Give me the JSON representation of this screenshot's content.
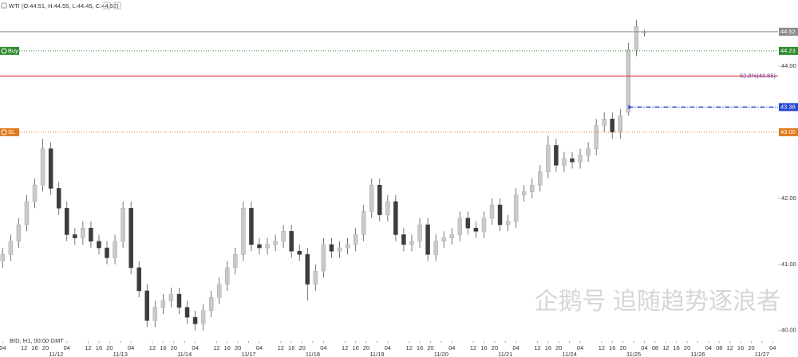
{
  "chart_data": {
    "type": "candlestick",
    "title": "WTI (O:44.51, H:44.55, L:44.45, C:44.52)",
    "footer": "BID, H1, 00:00 GMT",
    "watermark": "企鹅号 追随趋势逐浪者",
    "up_color": "#c9c9c9",
    "down_color": "#3d3d3d",
    "xlim": [
      3,
      294
    ],
    "ylim": [
      39.84,
      45.0
    ],
    "yticks": [
      {
        "value": 40,
        "label": "40.00"
      },
      {
        "value": 41,
        "label": "41.00"
      },
      {
        "value": 42,
        "label": "42.00"
      },
      {
        "value": 43,
        "label": "43.00"
      },
      {
        "value": 44,
        "label": "44.00"
      }
    ],
    "xticks": [
      {
        "value": 4,
        "label": "04"
      },
      {
        "value": 12,
        "label": "12"
      },
      {
        "value": 16,
        "label": "16"
      },
      {
        "value": 20,
        "label": "20"
      },
      {
        "value": 28,
        "label": "04"
      },
      {
        "value": 36,
        "label": "12"
      },
      {
        "value": 40,
        "label": "16"
      },
      {
        "value": 44,
        "label": "20"
      },
      {
        "value": 52,
        "label": "04"
      },
      {
        "value": 60,
        "label": "12"
      },
      {
        "value": 64,
        "label": "16"
      },
      {
        "value": 68,
        "label": "20"
      },
      {
        "value": 76,
        "label": "04"
      },
      {
        "value": 84,
        "label": "12"
      },
      {
        "value": 88,
        "label": "16"
      },
      {
        "value": 92,
        "label": "20"
      },
      {
        "value": 100,
        "label": "04"
      },
      {
        "value": 108,
        "label": "12"
      },
      {
        "value": 112,
        "label": "16"
      },
      {
        "value": 116,
        "label": "20"
      },
      {
        "value": 124,
        "label": "04"
      },
      {
        "value": 132,
        "label": "12"
      },
      {
        "value": 136,
        "label": "16"
      },
      {
        "value": 140,
        "label": "20"
      },
      {
        "value": 148,
        "label": "04"
      },
      {
        "value": 156,
        "label": "12"
      },
      {
        "value": 160,
        "label": "16"
      },
      {
        "value": 164,
        "label": "20"
      },
      {
        "value": 172,
        "label": "04"
      },
      {
        "value": 180,
        "label": "12"
      },
      {
        "value": 184,
        "label": "16"
      },
      {
        "value": 188,
        "label": "20"
      },
      {
        "value": 196,
        "label": "04"
      },
      {
        "value": 204,
        "label": "12"
      },
      {
        "value": 208,
        "label": "16"
      },
      {
        "value": 212,
        "label": "20"
      },
      {
        "value": 220,
        "label": "04"
      },
      {
        "value": 228,
        "label": "12"
      },
      {
        "value": 232,
        "label": "16"
      },
      {
        "value": 236,
        "label": "20"
      },
      {
        "value": 244,
        "label": "04"
      },
      {
        "value": 248,
        "label": "08"
      },
      {
        "value": 252,
        "label": "12"
      },
      {
        "value": 256,
        "label": "16"
      },
      {
        "value": 260,
        "label": "20"
      },
      {
        "value": 268,
        "label": "04"
      },
      {
        "value": 272,
        "label": "08"
      },
      {
        "value": 276,
        "label": "12"
      },
      {
        "value": 280,
        "label": "16"
      },
      {
        "value": 284,
        "label": "20"
      },
      {
        "value": 292,
        "label": "04"
      }
    ],
    "date_ticks": [
      {
        "value": 24,
        "label": "11/12"
      },
      {
        "value": 48,
        "label": "11/13"
      },
      {
        "value": 72,
        "label": "11/14"
      },
      {
        "value": 96,
        "label": "11/17"
      },
      {
        "value": 120,
        "label": "11/18"
      },
      {
        "value": 144,
        "label": "11/19"
      },
      {
        "value": 168,
        "label": "11/20"
      },
      {
        "value": 192,
        "label": "11/21"
      },
      {
        "value": 216,
        "label": "11/24"
      },
      {
        "value": 240,
        "label": "11/25"
      },
      {
        "value": 264,
        "label": "11/26"
      },
      {
        "value": 288,
        "label": "11/27"
      }
    ],
    "x": [
      4,
      7,
      10,
      13,
      16,
      19,
      22,
      25,
      28,
      31,
      34,
      37,
      40,
      43,
      46,
      49,
      52,
      55,
      58,
      61,
      64,
      67,
      70,
      73,
      76,
      79,
      82,
      85,
      88,
      91,
      94,
      97,
      100,
      103,
      106,
      109,
      112,
      115,
      118,
      121,
      124,
      127,
      130,
      133,
      136,
      139,
      142,
      145,
      148,
      151,
      154,
      157,
      160,
      163,
      166,
      169,
      172,
      175,
      178,
      181,
      184,
      187,
      190,
      193,
      196,
      199,
      202,
      205,
      208,
      211,
      214,
      217,
      220,
      223,
      226,
      229,
      232,
      235,
      238,
      241,
      244
    ],
    "open": [
      41.05,
      41.15,
      41.35,
      41.6,
      41.95,
      42.2,
      42.75,
      42.15,
      41.85,
      41.45,
      41.4,
      41.55,
      41.35,
      41.25,
      41.1,
      41.35,
      41.85,
      40.95,
      40.6,
      40.15,
      40.35,
      40.45,
      40.55,
      40.35,
      40.2,
      40.1,
      40.3,
      40.5,
      40.7,
      40.95,
      41.15,
      41.85,
      41.3,
      41.25,
      41.3,
      41.35,
      41.5,
      41.2,
      41.15,
      40.7,
      40.9,
      41.3,
      41.2,
      41.25,
      41.3,
      41.45,
      41.8,
      42.2,
      41.75,
      41.95,
      41.45,
      41.3,
      41.35,
      41.6,
      41.15,
      41.35,
      41.4,
      41.45,
      41.7,
      41.55,
      41.5,
      41.7,
      41.9,
      41.6,
      41.65,
      42.05,
      42.1,
      42.2,
      42.4,
      42.8,
      42.5,
      42.6,
      42.55,
      42.65,
      42.75,
      43.1,
      43.2,
      43.0,
      43.3,
      44.25,
      44.51
    ],
    "high": [
      41.25,
      41.45,
      41.7,
      42.05,
      42.3,
      42.9,
      42.85,
      42.25,
      41.95,
      41.55,
      41.65,
      41.65,
      41.45,
      41.35,
      41.45,
      41.95,
      41.95,
      41.05,
      40.7,
      40.45,
      40.55,
      40.65,
      40.65,
      40.45,
      40.3,
      40.4,
      40.6,
      40.8,
      41.05,
      41.25,
      41.95,
      41.95,
      41.4,
      41.4,
      41.45,
      41.6,
      41.6,
      41.3,
      41.25,
      41.0,
      41.4,
      41.4,
      41.35,
      41.4,
      41.55,
      41.9,
      42.3,
      42.3,
      42.05,
      42.05,
      41.55,
      41.45,
      41.7,
      41.7,
      41.45,
      41.5,
      41.55,
      41.8,
      41.8,
      41.65,
      41.8,
      42.0,
      42.0,
      41.75,
      42.15,
      42.2,
      42.3,
      42.5,
      42.95,
      42.9,
      42.7,
      42.7,
      42.75,
      42.85,
      43.2,
      43.3,
      43.3,
      43.35,
      44.35,
      44.7,
      44.55
    ],
    "low": [
      40.95,
      41.05,
      41.25,
      41.5,
      41.85,
      42.1,
      42.05,
      41.75,
      41.35,
      41.3,
      41.3,
      41.25,
      41.15,
      41.0,
      41.0,
      41.25,
      40.85,
      40.5,
      40.05,
      40.05,
      40.25,
      40.35,
      40.25,
      40.1,
      40.0,
      40.0,
      40.2,
      40.4,
      40.6,
      40.85,
      41.05,
      41.2,
      41.15,
      41.15,
      41.2,
      41.25,
      41.1,
      41.05,
      40.45,
      40.6,
      40.8,
      41.1,
      41.1,
      41.15,
      41.2,
      41.35,
      41.7,
      41.65,
      41.65,
      41.35,
      41.2,
      41.2,
      41.25,
      41.05,
      41.05,
      41.25,
      41.3,
      41.35,
      41.45,
      41.4,
      41.4,
      41.6,
      41.5,
      41.5,
      41.55,
      41.95,
      42.0,
      42.1,
      42.3,
      42.4,
      42.4,
      42.45,
      42.45,
      42.55,
      42.65,
      43.0,
      42.9,
      42.9,
      43.25,
      44.15,
      44.45
    ],
    "close": [
      41.15,
      41.35,
      41.6,
      41.95,
      42.2,
      42.75,
      42.15,
      41.85,
      41.45,
      41.4,
      41.55,
      41.35,
      41.25,
      41.1,
      41.35,
      41.85,
      40.95,
      40.6,
      40.15,
      40.35,
      40.45,
      40.55,
      40.35,
      40.2,
      40.1,
      40.3,
      40.5,
      40.7,
      40.95,
      41.15,
      41.85,
      41.3,
      41.25,
      41.3,
      41.35,
      41.5,
      41.2,
      41.15,
      40.7,
      40.9,
      41.3,
      41.2,
      41.25,
      41.3,
      41.45,
      41.8,
      42.2,
      41.75,
      41.95,
      41.45,
      41.3,
      41.35,
      41.6,
      41.15,
      41.35,
      41.4,
      41.45,
      41.7,
      41.55,
      41.5,
      41.7,
      41.9,
      41.6,
      41.65,
      42.05,
      42.1,
      42.2,
      42.4,
      42.8,
      42.5,
      42.6,
      42.55,
      42.65,
      42.75,
      43.1,
      43.2,
      43.0,
      43.25,
      44.25,
      44.6,
      44.52
    ],
    "levels": [
      {
        "value": 44.52,
        "label": "44.52",
        "color": "#8c8c8c",
        "style": "solid",
        "badge": true
      },
      {
        "name": "Buy",
        "value": 44.23,
        "label": "44.23",
        "color": "#2e8b2e",
        "style": "dotted",
        "badge": true
      },
      {
        "value": 43.85,
        "label": "62.8%(43.85)",
        "color": "#e02020",
        "label_color": "#6a3fb5",
        "style": "solid",
        "badge": false
      },
      {
        "value": 43.38,
        "label": "43.38",
        "color": "#2447d6",
        "style": "dashdot",
        "badge": true,
        "from_x": 238
      },
      {
        "name": "SL",
        "value": 43.0,
        "label": "43.00",
        "color": "#e07a1f",
        "style": "dotted",
        "badge": true
      }
    ]
  }
}
